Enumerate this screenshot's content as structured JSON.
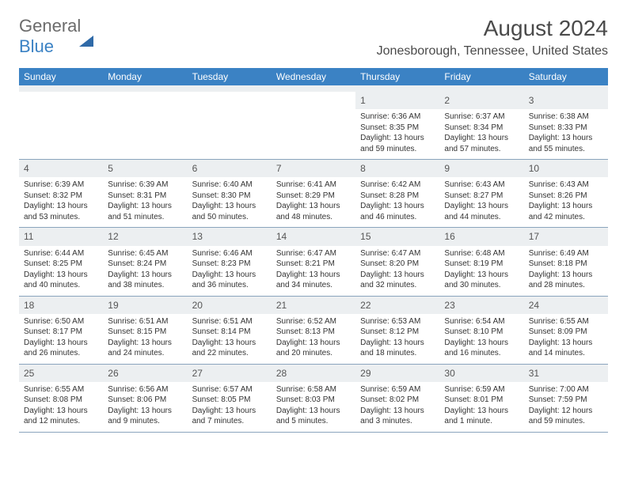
{
  "logo": {
    "text1": "General",
    "text2": "Blue"
  },
  "title": "August 2024",
  "location": "Jonesborough, Tennessee, United States",
  "colors": {
    "header_bg": "#3b82c4",
    "daynum_bg": "#eceff1",
    "text": "#333333",
    "logo_gray": "#6b6b6b",
    "logo_blue": "#3b82c4",
    "week_border": "#8aa4bd"
  },
  "weekdays": [
    "Sunday",
    "Monday",
    "Tuesday",
    "Wednesday",
    "Thursday",
    "Friday",
    "Saturday"
  ],
  "weeks": [
    [
      {
        "blank": true
      },
      {
        "blank": true
      },
      {
        "blank": true
      },
      {
        "blank": true
      },
      {
        "num": "1",
        "sunrise": "Sunrise: 6:36 AM",
        "sunset": "Sunset: 8:35 PM",
        "daylight": "Daylight: 13 hours and 59 minutes."
      },
      {
        "num": "2",
        "sunrise": "Sunrise: 6:37 AM",
        "sunset": "Sunset: 8:34 PM",
        "daylight": "Daylight: 13 hours and 57 minutes."
      },
      {
        "num": "3",
        "sunrise": "Sunrise: 6:38 AM",
        "sunset": "Sunset: 8:33 PM",
        "daylight": "Daylight: 13 hours and 55 minutes."
      }
    ],
    [
      {
        "num": "4",
        "sunrise": "Sunrise: 6:39 AM",
        "sunset": "Sunset: 8:32 PM",
        "daylight": "Daylight: 13 hours and 53 minutes."
      },
      {
        "num": "5",
        "sunrise": "Sunrise: 6:39 AM",
        "sunset": "Sunset: 8:31 PM",
        "daylight": "Daylight: 13 hours and 51 minutes."
      },
      {
        "num": "6",
        "sunrise": "Sunrise: 6:40 AM",
        "sunset": "Sunset: 8:30 PM",
        "daylight": "Daylight: 13 hours and 50 minutes."
      },
      {
        "num": "7",
        "sunrise": "Sunrise: 6:41 AM",
        "sunset": "Sunset: 8:29 PM",
        "daylight": "Daylight: 13 hours and 48 minutes."
      },
      {
        "num": "8",
        "sunrise": "Sunrise: 6:42 AM",
        "sunset": "Sunset: 8:28 PM",
        "daylight": "Daylight: 13 hours and 46 minutes."
      },
      {
        "num": "9",
        "sunrise": "Sunrise: 6:43 AM",
        "sunset": "Sunset: 8:27 PM",
        "daylight": "Daylight: 13 hours and 44 minutes."
      },
      {
        "num": "10",
        "sunrise": "Sunrise: 6:43 AM",
        "sunset": "Sunset: 8:26 PM",
        "daylight": "Daylight: 13 hours and 42 minutes."
      }
    ],
    [
      {
        "num": "11",
        "sunrise": "Sunrise: 6:44 AM",
        "sunset": "Sunset: 8:25 PM",
        "daylight": "Daylight: 13 hours and 40 minutes."
      },
      {
        "num": "12",
        "sunrise": "Sunrise: 6:45 AM",
        "sunset": "Sunset: 8:24 PM",
        "daylight": "Daylight: 13 hours and 38 minutes."
      },
      {
        "num": "13",
        "sunrise": "Sunrise: 6:46 AM",
        "sunset": "Sunset: 8:23 PM",
        "daylight": "Daylight: 13 hours and 36 minutes."
      },
      {
        "num": "14",
        "sunrise": "Sunrise: 6:47 AM",
        "sunset": "Sunset: 8:21 PM",
        "daylight": "Daylight: 13 hours and 34 minutes."
      },
      {
        "num": "15",
        "sunrise": "Sunrise: 6:47 AM",
        "sunset": "Sunset: 8:20 PM",
        "daylight": "Daylight: 13 hours and 32 minutes."
      },
      {
        "num": "16",
        "sunrise": "Sunrise: 6:48 AM",
        "sunset": "Sunset: 8:19 PM",
        "daylight": "Daylight: 13 hours and 30 minutes."
      },
      {
        "num": "17",
        "sunrise": "Sunrise: 6:49 AM",
        "sunset": "Sunset: 8:18 PM",
        "daylight": "Daylight: 13 hours and 28 minutes."
      }
    ],
    [
      {
        "num": "18",
        "sunrise": "Sunrise: 6:50 AM",
        "sunset": "Sunset: 8:17 PM",
        "daylight": "Daylight: 13 hours and 26 minutes."
      },
      {
        "num": "19",
        "sunrise": "Sunrise: 6:51 AM",
        "sunset": "Sunset: 8:15 PM",
        "daylight": "Daylight: 13 hours and 24 minutes."
      },
      {
        "num": "20",
        "sunrise": "Sunrise: 6:51 AM",
        "sunset": "Sunset: 8:14 PM",
        "daylight": "Daylight: 13 hours and 22 minutes."
      },
      {
        "num": "21",
        "sunrise": "Sunrise: 6:52 AM",
        "sunset": "Sunset: 8:13 PM",
        "daylight": "Daylight: 13 hours and 20 minutes."
      },
      {
        "num": "22",
        "sunrise": "Sunrise: 6:53 AM",
        "sunset": "Sunset: 8:12 PM",
        "daylight": "Daylight: 13 hours and 18 minutes."
      },
      {
        "num": "23",
        "sunrise": "Sunrise: 6:54 AM",
        "sunset": "Sunset: 8:10 PM",
        "daylight": "Daylight: 13 hours and 16 minutes."
      },
      {
        "num": "24",
        "sunrise": "Sunrise: 6:55 AM",
        "sunset": "Sunset: 8:09 PM",
        "daylight": "Daylight: 13 hours and 14 minutes."
      }
    ],
    [
      {
        "num": "25",
        "sunrise": "Sunrise: 6:55 AM",
        "sunset": "Sunset: 8:08 PM",
        "daylight": "Daylight: 13 hours and 12 minutes."
      },
      {
        "num": "26",
        "sunrise": "Sunrise: 6:56 AM",
        "sunset": "Sunset: 8:06 PM",
        "daylight": "Daylight: 13 hours and 9 minutes."
      },
      {
        "num": "27",
        "sunrise": "Sunrise: 6:57 AM",
        "sunset": "Sunset: 8:05 PM",
        "daylight": "Daylight: 13 hours and 7 minutes."
      },
      {
        "num": "28",
        "sunrise": "Sunrise: 6:58 AM",
        "sunset": "Sunset: 8:03 PM",
        "daylight": "Daylight: 13 hours and 5 minutes."
      },
      {
        "num": "29",
        "sunrise": "Sunrise: 6:59 AM",
        "sunset": "Sunset: 8:02 PM",
        "daylight": "Daylight: 13 hours and 3 minutes."
      },
      {
        "num": "30",
        "sunrise": "Sunrise: 6:59 AM",
        "sunset": "Sunset: 8:01 PM",
        "daylight": "Daylight: 13 hours and 1 minute."
      },
      {
        "num": "31",
        "sunrise": "Sunrise: 7:00 AM",
        "sunset": "Sunset: 7:59 PM",
        "daylight": "Daylight: 12 hours and 59 minutes."
      }
    ]
  ]
}
